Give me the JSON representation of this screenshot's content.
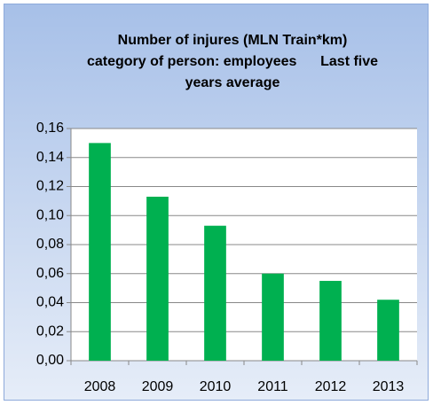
{
  "chart_data": {
    "type": "bar",
    "title": [
      "Number of injures (MLN Train*km)",
      "category of person: employees      Last five",
      "years average"
    ],
    "categories": [
      "2008",
      "2009",
      "2010",
      "2011",
      "2012",
      "2013"
    ],
    "values": [
      0.15,
      0.113,
      0.093,
      0.06,
      0.055,
      0.042
    ],
    "color": "#00b050",
    "ylim": [
      0,
      0.16
    ],
    "yticks": [
      {
        "value": 0,
        "label": "0,00"
      },
      {
        "value": 0.02,
        "label": "0,02"
      },
      {
        "value": 0.04,
        "label": "0,04"
      },
      {
        "value": 0.06,
        "label": "0,06"
      },
      {
        "value": 0.08,
        "label": "0,08"
      },
      {
        "value": 0.1,
        "label": "0,10"
      },
      {
        "value": 0.12,
        "label": "0,12"
      },
      {
        "value": 0.14,
        "label": "0,14"
      },
      {
        "value": 0.16,
        "label": "0,16"
      }
    ],
    "grid": true
  }
}
